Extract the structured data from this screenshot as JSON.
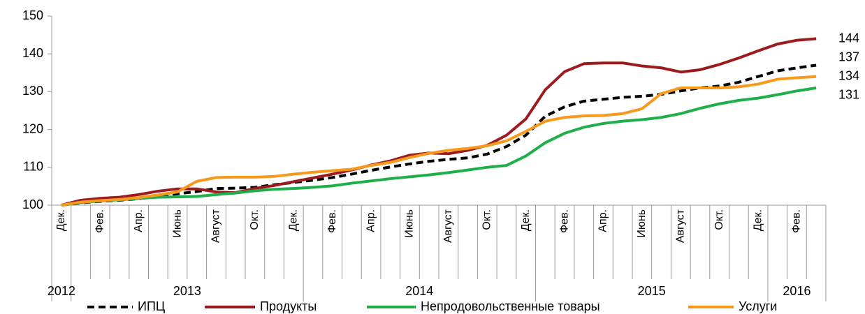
{
  "chart_data": {
    "type": "line",
    "categories": [
      "Дек.",
      null,
      "Фев.",
      null,
      "Апр.",
      null,
      "Июнь",
      null,
      "Август",
      null,
      "Окт.",
      null,
      "Дек.",
      null,
      "Фев.",
      null,
      "Апр.",
      null,
      "Июнь",
      null,
      "Август",
      null,
      "Окт.",
      null,
      "Дек.",
      null,
      "Фев.",
      null,
      "Апр.",
      null,
      "Июнь",
      null,
      "Август",
      null,
      "Окт.",
      null,
      "Дек.",
      null,
      "Фев.",
      null
    ],
    "years": [
      "2012",
      "2013",
      "2013",
      "2013",
      "2013",
      "2013",
      "2013",
      "2013",
      "2013",
      "2013",
      "2013",
      "2013",
      "2013",
      "2014",
      "2014",
      "2014",
      "2014",
      "2014",
      "2014",
      "2014",
      "2014",
      "2014",
      "2014",
      "2014",
      "2014",
      "2015",
      "2015",
      "2015",
      "2015",
      "2015",
      "2015",
      "2015",
      "2015",
      "2015",
      "2015",
      "2015",
      "2015",
      "2016",
      "2016",
      "2016"
    ],
    "series": [
      {
        "name": "ИПЦ",
        "color": "#000000",
        "dashed": true,
        "values": [
          100,
          100.6,
          101,
          101.3,
          101.7,
          102.3,
          103,
          103.6,
          104.4,
          104.5,
          104.7,
          105.4,
          106,
          106.6,
          107.3,
          108.2,
          109.2,
          110.1,
          110.9,
          111.6,
          112.1,
          112.5,
          113.5,
          115.5,
          118.5,
          123.5,
          126,
          127.5,
          128,
          128.5,
          128.8,
          129.3,
          130.2,
          131,
          131.5,
          132.5,
          134,
          135.5,
          136.3,
          137
        ]
      },
      {
        "name": "Продукты",
        "color": "#9b1b1f",
        "dashed": false,
        "values": [
          100,
          101.3,
          101.8,
          102.1,
          102.8,
          103.7,
          104.3,
          104.3,
          103.5,
          103.3,
          104.4,
          105.2,
          106.2,
          107.2,
          108.2,
          109.3,
          110.6,
          111.7,
          113.2,
          113.8,
          113.6,
          114.5,
          115.8,
          118.5,
          122.8,
          130.5,
          135.3,
          137.4,
          137.6,
          137.6,
          136.8,
          136.3,
          135.2,
          135.8,
          137.2,
          138.9,
          140.8,
          142.6,
          143.6,
          144
        ]
      },
      {
        "name": "Непродовольственные товары",
        "color": "#1eaf4b",
        "dashed": false,
        "values": [
          100,
          100.7,
          101.1,
          101.4,
          101.8,
          102.1,
          102.2,
          102.3,
          102.8,
          103.2,
          103.8,
          104.2,
          104.4,
          104.7,
          105.1,
          105.8,
          106.4,
          107,
          107.5,
          108,
          108.6,
          109.3,
          110,
          110.5,
          113,
          116.5,
          119,
          120.6,
          121.6,
          122.2,
          122.6,
          123.2,
          124.2,
          125.6,
          126.8,
          127.7,
          128.3,
          129.2,
          130.2,
          131
        ]
      },
      {
        "name": "Услуги",
        "color": "#f7991c",
        "dashed": false,
        "values": [
          100,
          100.8,
          101.2,
          101.5,
          102,
          102.7,
          103.5,
          106.3,
          107.3,
          107.4,
          107.4,
          107.6,
          108.2,
          108.7,
          109.1,
          109.5,
          110.5,
          111.3,
          112.6,
          113.7,
          114.5,
          115,
          115.7,
          117,
          119.5,
          122.2,
          123.2,
          123.6,
          123.7,
          124.2,
          125.5,
          129.5,
          131,
          131,
          131,
          131.3,
          132,
          133.3,
          133.7,
          134
        ]
      }
    ],
    "ylim": [
      100,
      150
    ],
    "yticks": [
      100,
      110,
      120,
      130,
      140,
      150
    ],
    "grid": false,
    "end_labels": true,
    "legend": "bottom"
  }
}
